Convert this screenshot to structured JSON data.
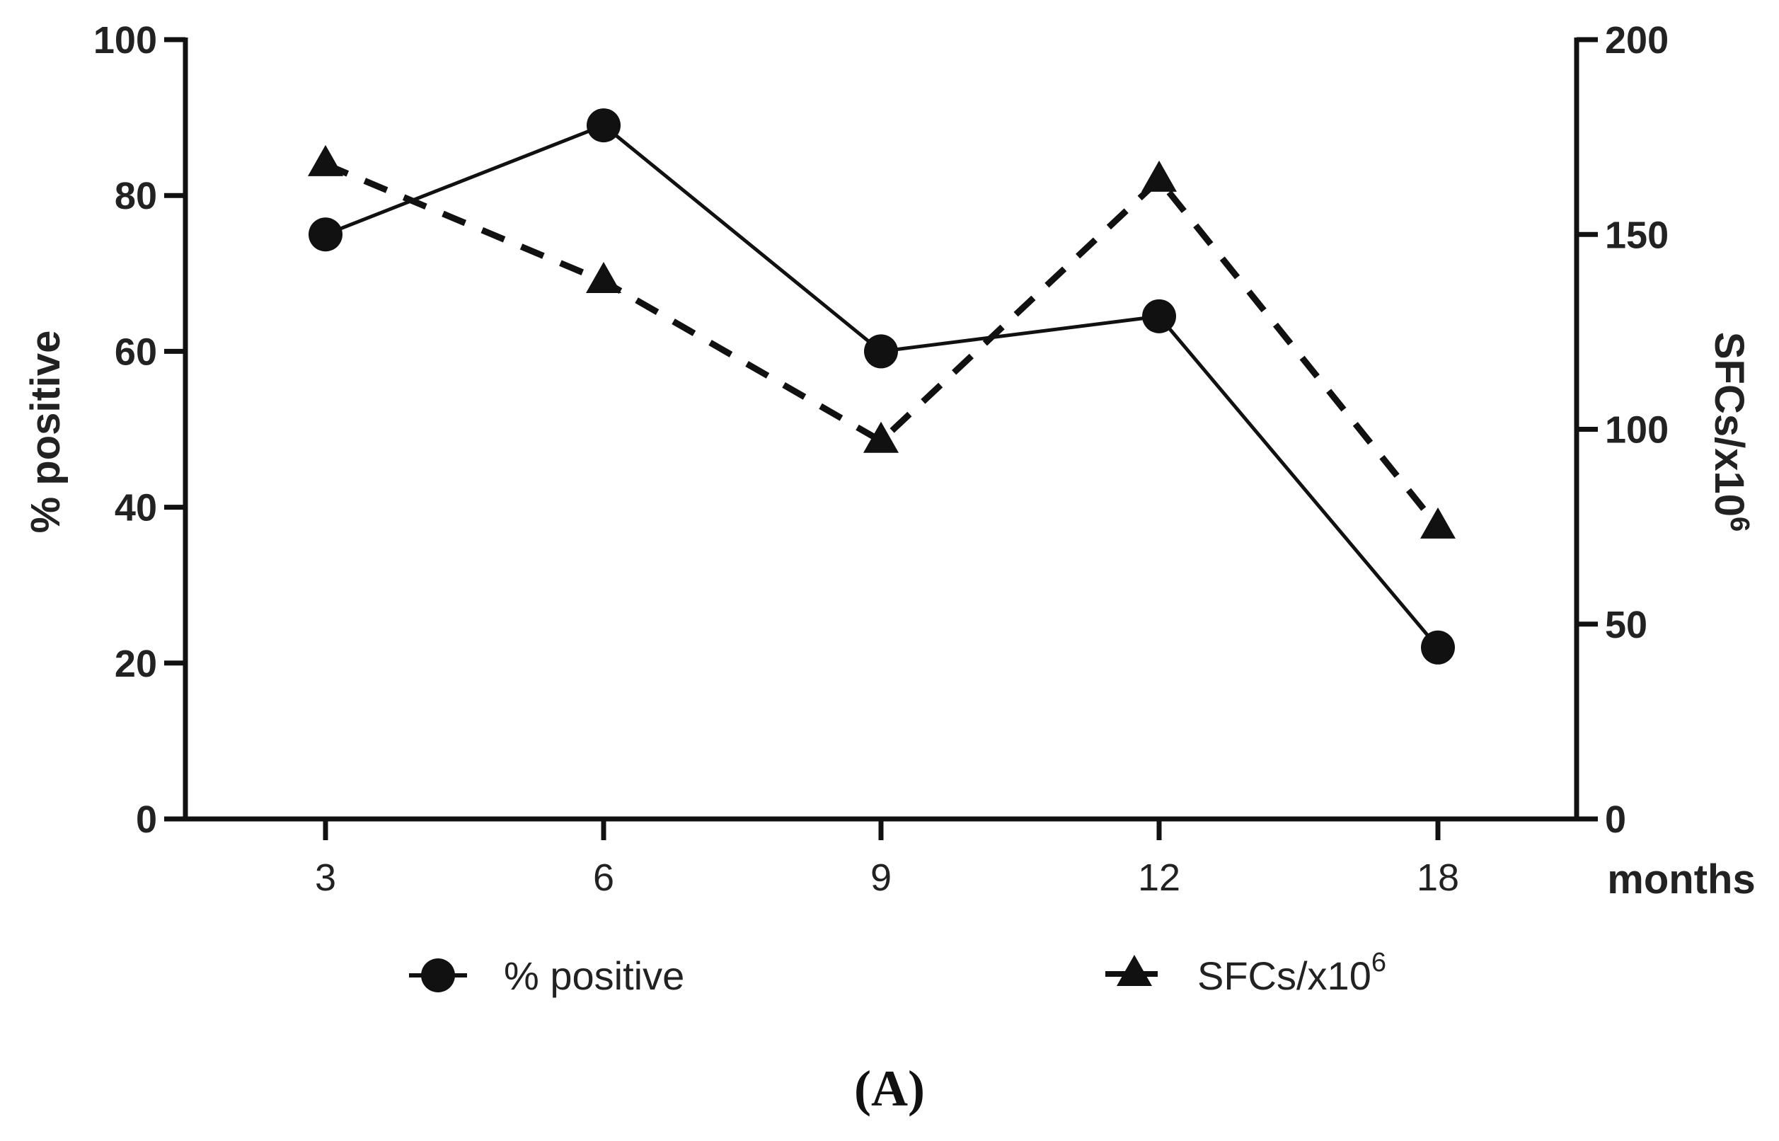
{
  "chart_data": {
    "type": "line",
    "title": "",
    "categories": [
      "3",
      "6",
      "9",
      "12",
      "18"
    ],
    "xlabel": "months",
    "ylabel_left": "% positive",
    "ylabel_right": "SFCs/x10",
    "ylabel_right_superscript": "6",
    "ylim_left": [
      0,
      100
    ],
    "ylim_right": [
      0,
      200
    ],
    "yticks_left": [
      "0",
      "20",
      "40",
      "60",
      "80",
      "100"
    ],
    "yticks_right": [
      "0",
      "50",
      "100",
      "150",
      "200"
    ],
    "series": [
      {
        "name": "% positive",
        "axis": "left",
        "marker": "circle",
        "line_style": "solid",
        "values": [
          75,
          89,
          60,
          64.5,
          22
        ]
      },
      {
        "name": "SFCs/x10",
        "name_superscript": "6",
        "axis": "right",
        "marker": "triangle",
        "line_style": "dashed",
        "values": [
          168,
          138,
          97,
          164,
          75
        ]
      }
    ],
    "legend_position": "bottom",
    "panel_label": "(A)",
    "colors": {
      "ink": "#111111",
      "background": "#ffffff"
    }
  }
}
